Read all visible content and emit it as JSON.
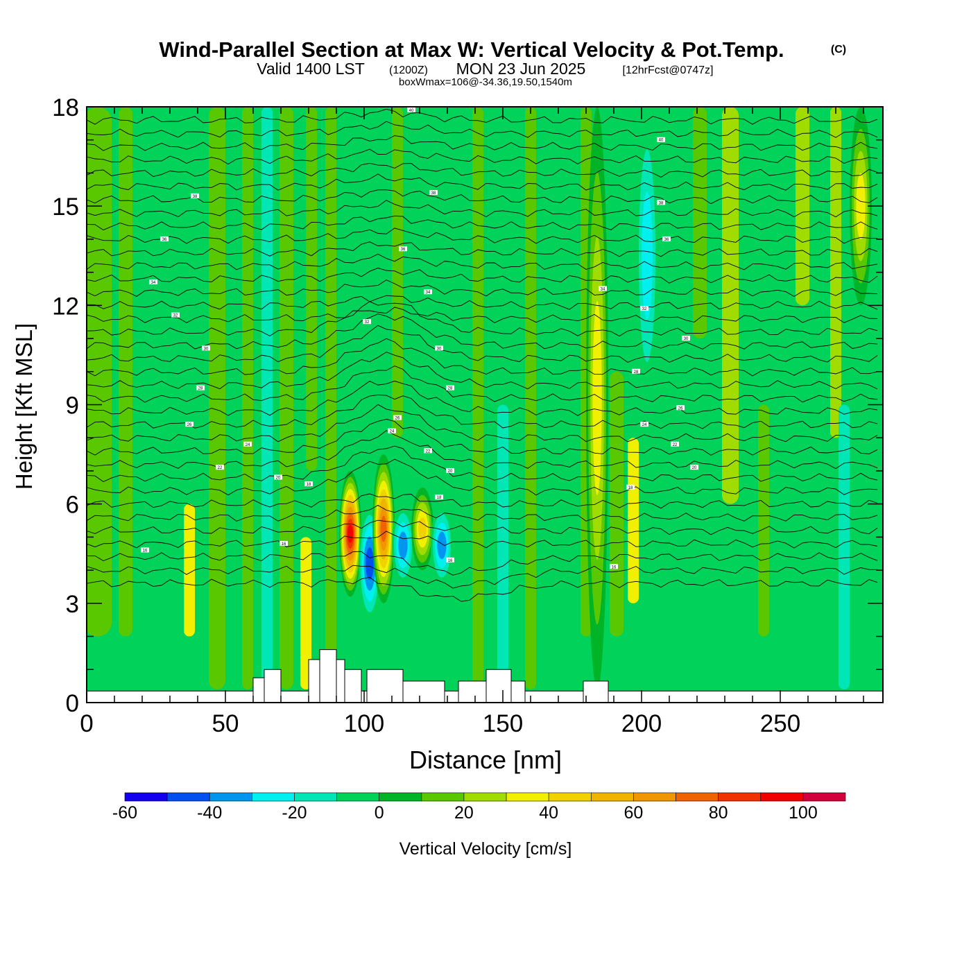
{
  "header": {
    "title": "Wind-Parallel Section at Max W: Vertical Velocity & Pot.Temp.",
    "copyright": "(C)",
    "valid_prefix": "Valid 1400 LST",
    "valid_utc": "(1200Z)",
    "valid_date": "MON 23 Jun 2025",
    "forecast": "[12hrFcst@0747z]",
    "box_info": "boxWmax=106@-34.36,19.50,1540m"
  },
  "chart_data": {
    "type": "heatmap",
    "xlabel": "Distance [nm]",
    "ylabel": "Height [Kft MSL]",
    "xlim": [
      0,
      287
    ],
    "ylim": [
      0,
      18
    ],
    "x_ticks": [
      "0",
      "50",
      "100",
      "150",
      "200",
      "250"
    ],
    "y_ticks": [
      "0",
      "3",
      "6",
      "9",
      "12",
      "15",
      "18"
    ],
    "colorbar": {
      "label": "Vertical Velocity [cm/s]",
      "levels": [
        -60,
        -50,
        -40,
        -30,
        -20,
        -10,
        0,
        10,
        20,
        30,
        40,
        50,
        60,
        70,
        80,
        90,
        100,
        110
      ],
      "tick_labels": [
        "-60",
        "-40",
        "-20",
        "0",
        "20",
        "40",
        "60",
        "80",
        "100"
      ],
      "colors": [
        "#1400f0",
        "#0050f0",
        "#0096f0",
        "#00f0f0",
        "#00e6b4",
        "#00d25a",
        "#00b428",
        "#5ac800",
        "#a0dc00",
        "#f0f000",
        "#f0d200",
        "#f0b400",
        "#f09600",
        "#f06400",
        "#f03200",
        "#f00000",
        "#d2003c"
      ]
    },
    "vertical_velocity_features": [
      {
        "x": 95,
        "z_bottom": 3.2,
        "z_top": 7.0,
        "w": 100
      },
      {
        "x": 102,
        "z_bottom": 2.4,
        "z_top": 6.0,
        "w": -50
      },
      {
        "x": 107,
        "z_bottom": 3.0,
        "z_top": 7.5,
        "w": 80
      },
      {
        "x": 114,
        "z_bottom": 3.5,
        "z_top": 6.0,
        "w": -40
      },
      {
        "x": 121,
        "z_bottom": 4.0,
        "z_top": 6.5,
        "w": 50
      },
      {
        "x": 128,
        "z_bottom": 3.5,
        "z_top": 6.0,
        "w": -45
      },
      {
        "x": 184,
        "z_bottom": 0.4,
        "z_top": 18,
        "w": 40
      },
      {
        "x": 202,
        "z_bottom": 9,
        "z_top": 18,
        "w": -30
      },
      {
        "x": 279,
        "z_bottom": 12,
        "z_top": 18,
        "w": 40
      }
    ],
    "potential_temperature_labels": [
      {
        "x": 117,
        "y": 17.9,
        "text": "40"
      },
      {
        "x": 207,
        "y": 17.0,
        "text": "40"
      },
      {
        "x": 39,
        "y": 15.3,
        "text": "38"
      },
      {
        "x": 125,
        "y": 15.4,
        "text": "38"
      },
      {
        "x": 207,
        "y": 15.1,
        "text": "38"
      },
      {
        "x": 28,
        "y": 14.0,
        "text": "36"
      },
      {
        "x": 114,
        "y": 13.7,
        "text": "36"
      },
      {
        "x": 209,
        "y": 14.0,
        "text": "36"
      },
      {
        "x": 24,
        "y": 12.7,
        "text": "34"
      },
      {
        "x": 123,
        "y": 12.4,
        "text": "34"
      },
      {
        "x": 186,
        "y": 12.5,
        "text": "34"
      },
      {
        "x": 32,
        "y": 11.7,
        "text": "32"
      },
      {
        "x": 101,
        "y": 11.5,
        "text": "32"
      },
      {
        "x": 201,
        "y": 11.9,
        "text": "32"
      },
      {
        "x": 43,
        "y": 10.7,
        "text": "30"
      },
      {
        "x": 127,
        "y": 10.7,
        "text": "30"
      },
      {
        "x": 216,
        "y": 11.0,
        "text": "30"
      },
      {
        "x": 41,
        "y": 9.5,
        "text": "28"
      },
      {
        "x": 131,
        "y": 9.5,
        "text": "28"
      },
      {
        "x": 198,
        "y": 10.0,
        "text": "28"
      },
      {
        "x": 37,
        "y": 8.4,
        "text": "26"
      },
      {
        "x": 112,
        "y": 8.6,
        "text": "26"
      },
      {
        "x": 214,
        "y": 8.9,
        "text": "26"
      },
      {
        "x": 58,
        "y": 7.8,
        "text": "24"
      },
      {
        "x": 110,
        "y": 8.2,
        "text": "24"
      },
      {
        "x": 201,
        "y": 8.4,
        "text": "24"
      },
      {
        "x": 48,
        "y": 7.1,
        "text": "22"
      },
      {
        "x": 123,
        "y": 7.6,
        "text": "22"
      },
      {
        "x": 212,
        "y": 7.8,
        "text": "22"
      },
      {
        "x": 69,
        "y": 6.8,
        "text": "20"
      },
      {
        "x": 131,
        "y": 7.0,
        "text": "20"
      },
      {
        "x": 219,
        "y": 7.1,
        "text": "20"
      },
      {
        "x": 80,
        "y": 6.6,
        "text": "18"
      },
      {
        "x": 127,
        "y": 6.2,
        "text": "18"
      },
      {
        "x": 196,
        "y": 6.5,
        "text": "18"
      },
      {
        "x": 21,
        "y": 4.6,
        "text": "16"
      },
      {
        "x": 71,
        "y": 4.8,
        "text": "16"
      },
      {
        "x": 131,
        "y": 4.3,
        "text": "16"
      },
      {
        "x": 190,
        "y": 4.1,
        "text": "16"
      }
    ]
  }
}
